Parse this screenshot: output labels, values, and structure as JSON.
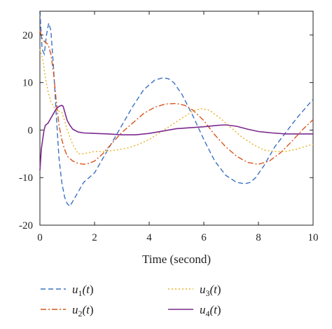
{
  "chart_data": {
    "type": "line",
    "xlabel": "Time (second)",
    "ylabel": "",
    "xlim": [
      0,
      10
    ],
    "ylim": [
      -20,
      25
    ],
    "xticks": [
      0,
      2,
      4,
      6,
      8,
      10
    ],
    "yticks": [
      -20,
      -10,
      0,
      10,
      20
    ],
    "grid": false,
    "legend_position": "bottom",
    "series": [
      {
        "name": "u1(t)",
        "color": "#3a72c4",
        "dash": "dashed",
        "x": [
          0,
          0.08,
          0.16,
          0.24,
          0.32,
          0.4,
          0.5,
          0.6,
          0.7,
          0.8,
          0.9,
          1.0,
          1.1,
          1.2,
          1.3,
          1.4,
          1.5,
          1.6,
          1.8,
          2.0,
          2.3,
          2.6,
          3.0,
          3.4,
          3.8,
          4.2,
          4.5,
          4.7,
          4.9,
          5.2,
          5.6,
          6.0,
          6.4,
          6.8,
          7.2,
          7.5,
          7.7,
          7.9,
          8.2,
          8.6,
          9.0,
          9.4,
          9.7,
          10.0
        ],
        "y": [
          25,
          17,
          16,
          20,
          22.5,
          21,
          13,
          3,
          -6,
          -11,
          -14,
          -15.5,
          -16,
          -15,
          -14,
          -13,
          -12,
          -11,
          -10,
          -9,
          -6,
          -3,
          1,
          5,
          8.5,
          10.5,
          11,
          10.8,
          10,
          7.5,
          3,
          -2,
          -6.5,
          -9.5,
          -11,
          -11.3,
          -11,
          -10,
          -7.5,
          -3.5,
          -0.5,
          2.5,
          4.5,
          6.5
        ]
      },
      {
        "name": "u2(t)",
        "color": "#d9541c",
        "dash": "dashdot",
        "x": [
          0,
          0.1,
          0.2,
          0.3,
          0.4,
          0.5,
          0.6,
          0.7,
          0.8,
          0.9,
          1.0,
          1.2,
          1.4,
          1.6,
          1.8,
          2.0,
          2.3,
          2.6,
          3.0,
          3.4,
          3.8,
          4.2,
          4.6,
          5.0,
          5.3,
          5.6,
          6.0,
          6.4,
          6.8,
          7.2,
          7.6,
          8.0,
          8.4,
          8.8,
          9.2,
          9.6,
          10.0
        ],
        "y": [
          21,
          19,
          18.5,
          18,
          16,
          12,
          6,
          1,
          -2,
          -4,
          -5.5,
          -6.5,
          -7,
          -7.2,
          -7,
          -6.5,
          -5,
          -3,
          -0.5,
          1.5,
          3.5,
          4.8,
          5.5,
          5.6,
          5.2,
          4.2,
          2,
          -1,
          -3.5,
          -5.5,
          -6.8,
          -7.2,
          -6.5,
          -4.8,
          -2.5,
          0,
          2.2
        ]
      },
      {
        "name": "u3(t)",
        "color": "#e8b020",
        "dash": "dotted",
        "x": [
          0,
          0.1,
          0.2,
          0.3,
          0.4,
          0.5,
          0.6,
          0.7,
          0.8,
          0.9,
          1.0,
          1.2,
          1.4,
          1.6,
          2.0,
          2.4,
          2.8,
          3.2,
          3.6,
          4.0,
          4.4,
          4.8,
          5.2,
          5.6,
          5.9,
          6.2,
          6.6,
          7.0,
          7.4,
          7.8,
          8.2,
          8.6,
          9.0,
          9.4,
          9.8,
          10.0
        ],
        "y": [
          17,
          15,
          11,
          8,
          6,
          5,
          4,
          4,
          3.8,
          2,
          0,
          -3,
          -5,
          -5,
          -4.5,
          -4.5,
          -4.2,
          -3.8,
          -3,
          -2,
          -0.5,
          1,
          2.5,
          4,
          4.5,
          4.2,
          2.5,
          0.5,
          -1.5,
          -3,
          -4.2,
          -4.5,
          -4.5,
          -4,
          -3.3,
          -3
        ]
      },
      {
        "name": "u4(t)",
        "color": "#7b2a8e",
        "dash": "solid",
        "x": [
          0,
          0.05,
          0.1,
          0.15,
          0.2,
          0.3,
          0.4,
          0.5,
          0.6,
          0.7,
          0.8,
          0.85,
          0.9,
          0.95,
          1.0,
          1.1,
          1.2,
          1.4,
          1.6,
          2.0,
          2.5,
          3.0,
          3.5,
          4.0,
          4.5,
          5.0,
          5.5,
          6.0,
          6.5,
          6.8,
          7.2,
          7.6,
          8.0,
          8.5,
          9.0,
          9.5,
          10.0
        ],
        "y": [
          -8.5,
          -4,
          -2,
          0,
          1,
          1.5,
          2.5,
          3.5,
          4.5,
          5,
          5.2,
          5,
          4,
          3,
          2,
          1,
          0.2,
          -0.4,
          -0.6,
          -0.7,
          -0.8,
          -1,
          -1,
          -0.7,
          -0.2,
          0.3,
          0.5,
          0.7,
          1,
          1.1,
          0.8,
          0.2,
          -0.3,
          -0.6,
          -0.8,
          -0.8,
          -0.8
        ]
      }
    ]
  }
}
